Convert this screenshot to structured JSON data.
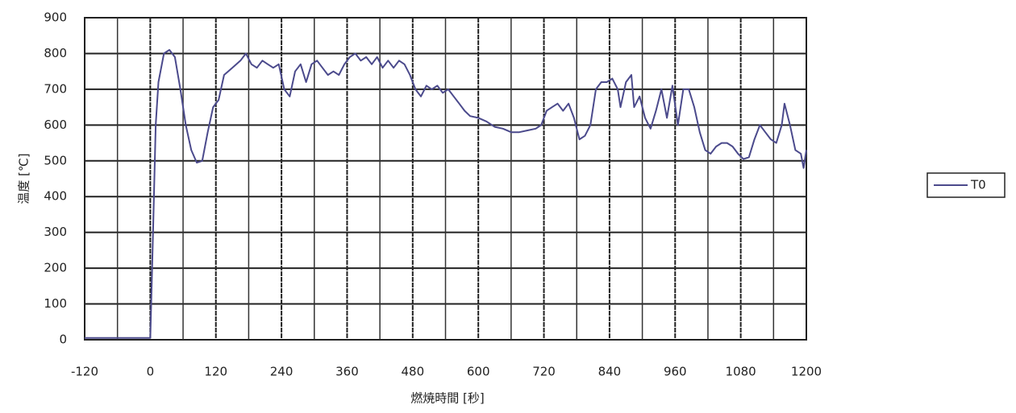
{
  "chart_data": {
    "type": "line",
    "x_label": "燃焼時間 [秒]",
    "y_label": "温度 [℃]",
    "xlim": [
      -120,
      1200
    ],
    "xticks": [
      -120,
      0,
      120,
      240,
      360,
      480,
      600,
      720,
      840,
      960,
      1080,
      1200
    ],
    "xminorticks": [
      -60,
      60,
      180,
      300,
      420,
      540,
      660,
      780,
      900,
      1020,
      1140
    ],
    "ylim": [
      0,
      900
    ],
    "yticks": [
      0,
      100,
      200,
      300,
      400,
      500,
      600,
      700,
      800,
      900
    ],
    "grid": true,
    "legend": "right",
    "series": [
      {
        "name": "T0",
        "color": "#4b4a8c",
        "x": [
          -120,
          -60,
          0,
          5,
          10,
          15,
          25,
          35,
          45,
          55,
          65,
          75,
          85,
          95,
          105,
          115,
          125,
          135,
          150,
          165,
          175,
          185,
          195,
          205,
          215,
          225,
          235,
          245,
          255,
          265,
          275,
          285,
          295,
          305,
          315,
          325,
          335,
          345,
          355,
          365,
          375,
          385,
          395,
          405,
          415,
          425,
          435,
          445,
          455,
          465,
          475,
          485,
          495,
          505,
          515,
          525,
          535,
          545,
          555,
          565,
          575,
          585,
          600,
          615,
          630,
          645,
          660,
          675,
          690,
          705,
          715,
          725,
          735,
          745,
          755,
          765,
          775,
          785,
          795,
          805,
          815,
          825,
          835,
          845,
          855,
          860,
          870,
          880,
          885,
          895,
          905,
          915,
          925,
          935,
          945,
          955,
          965,
          975,
          985,
          995,
          1005,
          1015,
          1025,
          1035,
          1045,
          1055,
          1065,
          1075,
          1085,
          1095,
          1105,
          1115,
          1125,
          1135,
          1145,
          1155,
          1160,
          1170,
          1180,
          1190,
          1195,
          1200
        ],
        "values": [
          5,
          5,
          5,
          300,
          600,
          720,
          800,
          810,
          790,
          700,
          600,
          530,
          495,
          500,
          580,
          650,
          670,
          740,
          760,
          780,
          800,
          770,
          760,
          780,
          770,
          760,
          770,
          700,
          680,
          750,
          770,
          720,
          770,
          780,
          760,
          740,
          750,
          740,
          770,
          790,
          800,
          780,
          790,
          770,
          790,
          760,
          780,
          760,
          780,
          770,
          740,
          700,
          680,
          710,
          700,
          710,
          690,
          700,
          680,
          660,
          640,
          625,
          620,
          610,
          595,
          590,
          580,
          580,
          585,
          590,
          600,
          640,
          650,
          660,
          640,
          660,
          620,
          560,
          570,
          600,
          700,
          720,
          720,
          730,
          700,
          650,
          720,
          740,
          650,
          680,
          620,
          590,
          640,
          700,
          620,
          710,
          600,
          700,
          700,
          650,
          580,
          530,
          520,
          540,
          550,
          550,
          540,
          520,
          505,
          510,
          560,
          600,
          580,
          560,
          550,
          600,
          660,
          600,
          530,
          520,
          480,
          530
        ]
      }
    ]
  }
}
